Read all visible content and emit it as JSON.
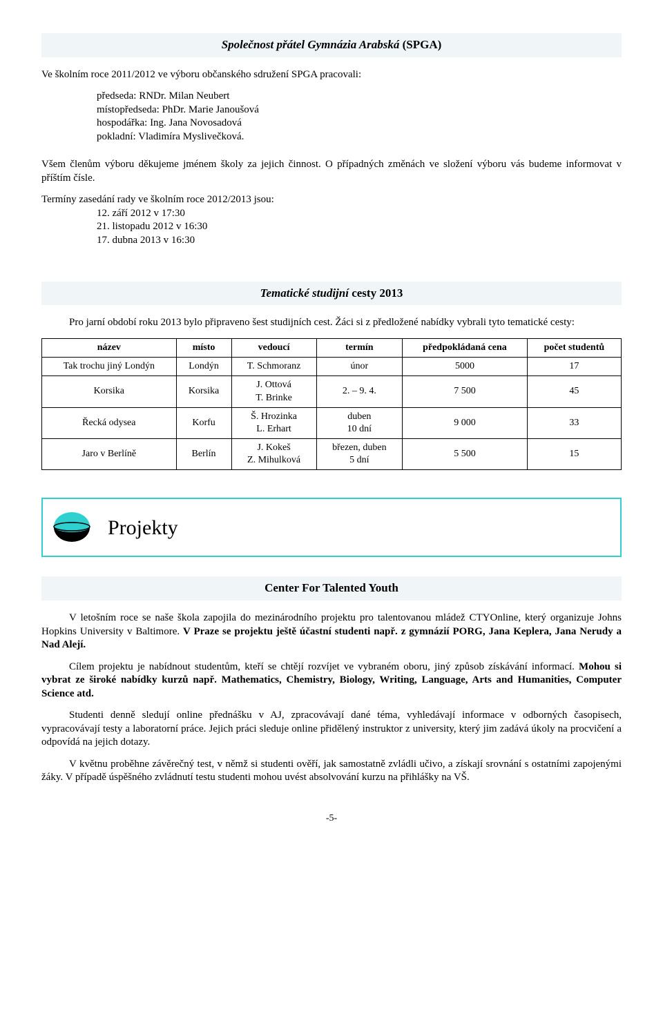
{
  "spga": {
    "title_italic": "Společnost přátel Gymnázia Arabská",
    "title_tail": "(SPGA)",
    "intro": "Ve školním roce 2011/2012 ve výboru občanského sdružení SPGA pracovali:",
    "roles": {
      "predseda": "předseda: RNDr. Milan Neubert",
      "mistopredseda": "místopředseda: PhDr. Marie Janoušová",
      "hospodarka": "hospodářka: Ing. Jana Novosadová",
      "pokladni": "pokladní: Vladimíra Myslivečková."
    },
    "thanks": "Všem členům výboru děkujeme jménem školy za jejich činnost. O případných změnách ve složení výboru vás budeme informovat v příštím čísle.",
    "meetings_intro": "Termíny zasedání rady ve školním roce 2012/2013 jsou:",
    "meetings": {
      "d1": "12. září 2012 v 17:30",
      "d2": "21. listopadu 2012 v 16:30",
      "d3": "17. dubna 2013 v 16:30"
    }
  },
  "trips": {
    "title_italic": "Tematické studijní",
    "title_tail": "cesty 2013",
    "intro": "Pro jarní období  roku 2013 bylo připraveno šest studijních cest. Žáci si z předložené nabídky vybrali tyto tematické cesty:",
    "headers": {
      "nazev": "název",
      "misto": "místo",
      "vedouci": "vedoucí",
      "termin": "termín",
      "cena": "předpokládaná cena",
      "pocet": "počet studentů"
    },
    "rows": [
      {
        "nazev": "Tak trochu jiný Londýn",
        "misto": "Londýn",
        "vedouci": "T. Schmoranz",
        "termin": "únor",
        "cena": "5000",
        "pocet": "17"
      },
      {
        "nazev": "Korsika",
        "misto": "Korsika",
        "vedouci": "J. Ottová\nT. Brinke",
        "termin": "2. – 9. 4.",
        "cena": "7 500",
        "pocet": "45"
      },
      {
        "nazev": "Řecká odysea",
        "misto": "Korfu",
        "vedouci": "Š. Hrozinka\nL. Erhart",
        "termin": "duben\n10 dní",
        "cena": "9 000",
        "pocet": "33"
      },
      {
        "nazev": "Jaro v Berlíně",
        "misto": "Berlín",
        "vedouci": "J. Kokeš\nZ. Mihulková",
        "termin": "březen, duben\n5 dní",
        "cena": "5 500",
        "pocet": "15"
      }
    ]
  },
  "projekty": {
    "label": "Projekty",
    "icon_colors": {
      "top": "#2fd0d0",
      "bottom": "#000000"
    }
  },
  "cty": {
    "title_italic": "",
    "title_plain": "Center For Talented Youth",
    "p1_a": "V letošním roce se naše škola zapojila do mezinárodního projektu pro talentovanou mládež CTYOnline, který organizuje Johns Hopkins University v Baltimore. ",
    "p1_b": "V Praze se projektu ještě účastní studenti např. z gymnázií PORG, Jana Keplera, Jana Nerudy a Nad Alejí.",
    "p2_a": "Cílem projektu je nabídnout studentům, kteří se chtějí rozvíjet ve vybraném oboru, jiný způsob získávání informací. ",
    "p2_b": "Mohou si vybrat ze široké nabídky kurzů např. Mathematics, Chemistry, Biology, Writing, Language, Arts and Humanities, Computer Science atd.",
    "p3": "Studenti denně sledují online přednášku v AJ, zpracovávají dané téma, vyhledávají informace v odborných časopisech, vypracovávají testy a laboratorní práce. Jejich práci sleduje online přidělený instruktor z university, který jim zadává úkoly na procvičení a odpovídá na jejich dotazy.",
    "p4": "V květnu proběhne závěrečný test, v němž si studenti ověří, jak samostatně zvládli učivo, a získají srovnání s ostatními zapojenými žáky. V případě úspěšného zvládnutí testu studenti mohou uvést absolvování kurzu na přihlášky na VŠ."
  },
  "page_number": "-5-"
}
